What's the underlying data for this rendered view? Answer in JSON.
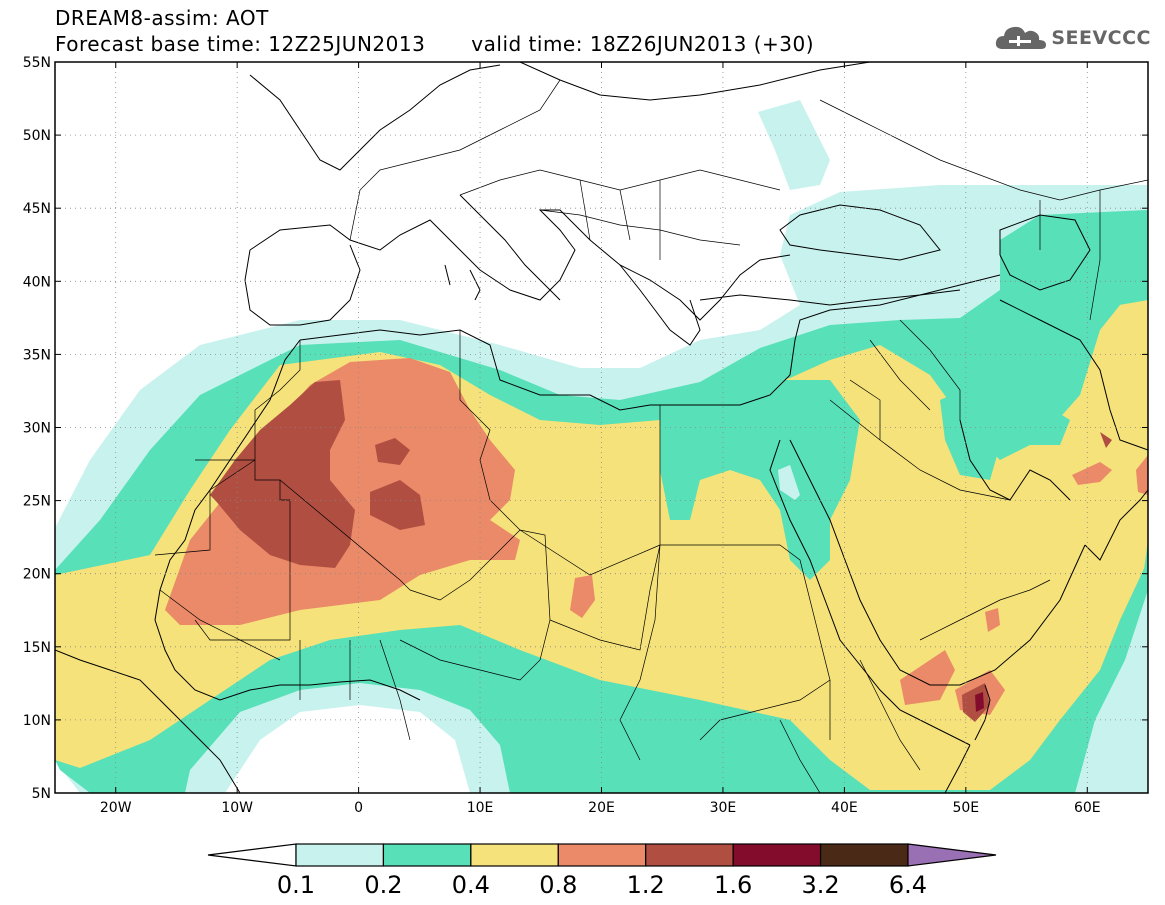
{
  "header": {
    "title": "DREAM8-assim: AOT",
    "base_time": "Forecast base time: 12Z25JUN2013",
    "valid_time": "valid time: 18Z26JUN2013 (+30)"
  },
  "logo": {
    "text": "SEEVCCC",
    "icon": "cloud-logo-icon"
  },
  "map": {
    "lon_min": -25,
    "lon_max": 65,
    "lat_min": 5,
    "lat_max": 55,
    "lat_labels": [
      "5N",
      "10N",
      "15N",
      "20N",
      "25N",
      "30N",
      "35N",
      "40N",
      "45N",
      "50N",
      "55N"
    ],
    "lon_labels": [
      "20W",
      "10W",
      "0",
      "10E",
      "20E",
      "30E",
      "40E",
      "50E",
      "60E"
    ],
    "grid": "dotted"
  },
  "colorbar": {
    "labels": [
      "0.1",
      "0.2",
      "0.4",
      "0.8",
      "1.2",
      "1.6",
      "3.2",
      "6.4"
    ],
    "colors": [
      "#ffffff",
      "#c8f2ee",
      "#58e0b8",
      "#f5e27a",
      "#ea8a68",
      "#b04e42",
      "#830c2c",
      "#4a2a16",
      "#9a70b4"
    ]
  },
  "colors": {
    "c01": "#c8f2ee",
    "c02": "#58e0b8",
    "c04": "#f5e27a",
    "c08": "#ea8a68",
    "c12": "#b04e42",
    "c16": "#830c2c"
  }
}
